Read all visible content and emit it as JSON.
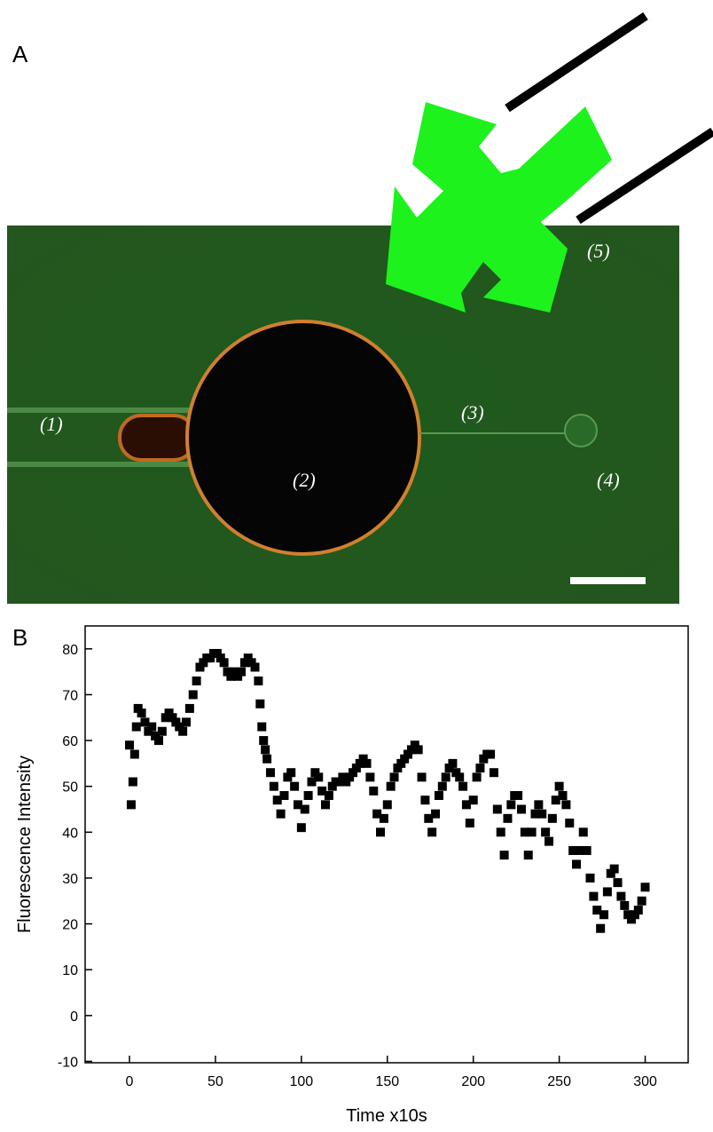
{
  "panel_a": {
    "label": "A",
    "annotations": [
      "(1)",
      "(2)",
      "(3)",
      "(4)",
      "(5)"
    ]
  },
  "chart_data": {
    "type": "scatter",
    "panel_label": "B",
    "x_label": "Time x10s",
    "y_label": "Fluorescence Intensity",
    "x": [
      0,
      1,
      2,
      3,
      4,
      5,
      7,
      9,
      11,
      13,
      15,
      17,
      19,
      21,
      23,
      25,
      27,
      29,
      31,
      33,
      35,
      37,
      39,
      41,
      43,
      45,
      47,
      49,
      51,
      53,
      55,
      57,
      59,
      61,
      63,
      65,
      67,
      69,
      71,
      73,
      75,
      76,
      77,
      78,
      79,
      80,
      82,
      84,
      86,
      88,
      90,
      92,
      94,
      96,
      98,
      100,
      102,
      104,
      106,
      108,
      110,
      112,
      114,
      116,
      118,
      120,
      122,
      124,
      126,
      128,
      130,
      132,
      134,
      136,
      138,
      140,
      142,
      144,
      146,
      148,
      150,
      152,
      154,
      156,
      158,
      160,
      162,
      164,
      166,
      168,
      170,
      172,
      174,
      176,
      178,
      180,
      182,
      184,
      186,
      188,
      190,
      192,
      194,
      196,
      198,
      200,
      202,
      204,
      206,
      208,
      210,
      212,
      214,
      216,
      218,
      220,
      222,
      224,
      226,
      228,
      230,
      232,
      234,
      236,
      238,
      240,
      242,
      244,
      246,
      248,
      250,
      252,
      254,
      256,
      258,
      260,
      262,
      264,
      266,
      268,
      270,
      272,
      274,
      276,
      278,
      280,
      282,
      284,
      286,
      288,
      290,
      292,
      294,
      296,
      298,
      300
    ],
    "values": [
      59,
      46,
      51,
      57,
      63,
      67,
      66,
      64,
      62,
      63,
      61,
      60,
      62,
      65,
      66,
      65,
      64,
      63,
      62,
      64,
      67,
      70,
      73,
      76,
      77,
      78,
      78,
      79,
      79,
      78,
      77,
      75,
      74,
      75,
      74,
      75,
      77,
      78,
      77,
      76,
      73,
      68,
      63,
      60,
      58,
      56,
      53,
      50,
      47,
      44,
      48,
      52,
      53,
      50,
      46,
      41,
      45,
      48,
      51,
      53,
      52,
      49,
      46,
      48,
      50,
      51,
      51,
      52,
      51,
      52,
      53,
      54,
      55,
      56,
      55,
      52,
      49,
      44,
      40,
      43,
      46,
      50,
      52,
      54,
      55,
      56,
      57,
      58,
      59,
      58,
      52,
      47,
      43,
      40,
      44,
      48,
      50,
      52,
      54,
      55,
      53,
      52,
      50,
      46,
      42,
      47,
      52,
      54,
      56,
      57,
      57,
      53,
      45,
      40,
      35,
      43,
      46,
      48,
      48,
      45,
      40,
      35,
      40,
      44,
      46,
      44,
      40,
      38,
      43,
      47,
      50,
      48,
      46,
      42,
      36,
      33,
      36,
      40,
      36,
      30,
      26,
      23,
      19,
      22,
      27,
      31,
      32,
      29,
      26,
      24,
      22,
      21,
      22,
      23,
      25,
      28
    ],
    "color": "#000000",
    "xlim": [
      -25.8,
      325
    ],
    "ylim": [
      -10.3,
      85
    ],
    "xticks": [
      0,
      50,
      100,
      150,
      200,
      250,
      300
    ],
    "yticks": [
      -10,
      0,
      10,
      20,
      30,
      40,
      50,
      60,
      70,
      80
    ]
  }
}
